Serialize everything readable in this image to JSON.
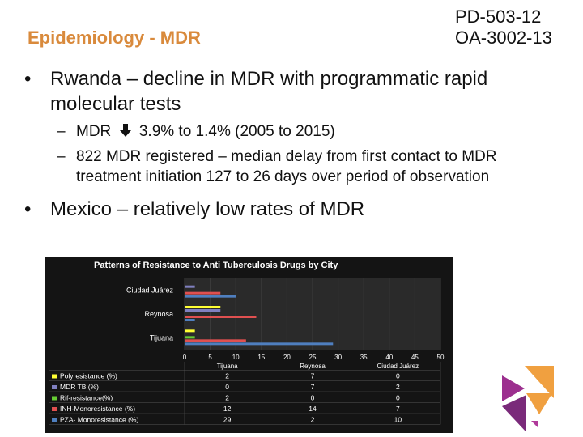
{
  "slide": {
    "title": "Epidemiology - MDR",
    "code1": "PD-503-12",
    "code2": "OA-3002-13",
    "bullet_mark": "•",
    "dash_mark": "–",
    "bullet1": "Rwanda – decline in MDR with programmatic rapid molecular tests",
    "sub1_prefix": "MDR",
    "sub1_suffix": "3.9% to 1.4% (2005 to 2015)",
    "sub2": "822 MDR registered – median delay from first contact to MDR treatment initiation 127 to 26 days over period of observation",
    "bullet2": "Mexico – relatively low rates of MDR"
  },
  "chart_data": {
    "type": "bar",
    "orientation": "horizontal",
    "title": "Patterns of Resistance to Anti Tuberculosis Drugs by City",
    "categories": [
      "Tijuana",
      "Reynosa",
      "Ciudad Juárez"
    ],
    "xlim": [
      0,
      50
    ],
    "xticks": [
      0,
      5,
      10,
      15,
      20,
      25,
      30,
      35,
      40,
      45,
      50
    ],
    "series": [
      {
        "name": "Polyresistance (%)",
        "color": "#ffff33",
        "values": [
          2,
          7,
          0
        ]
      },
      {
        "name": "MDR TB (%)",
        "color": "#8080c0",
        "values": [
          0,
          7,
          2
        ]
      },
      {
        "name": "Rif-resistance(%)",
        "color": "#66cc33",
        "values": [
          2,
          0,
          0
        ]
      },
      {
        "name": "INH-Monoresistance (%)",
        "color": "#e05050",
        "values": [
          12,
          14,
          7
        ]
      },
      {
        "name": "PZA- Monoresistance (%)",
        "color": "#4f7fbf",
        "values": [
          29,
          2,
          10
        ]
      }
    ]
  }
}
